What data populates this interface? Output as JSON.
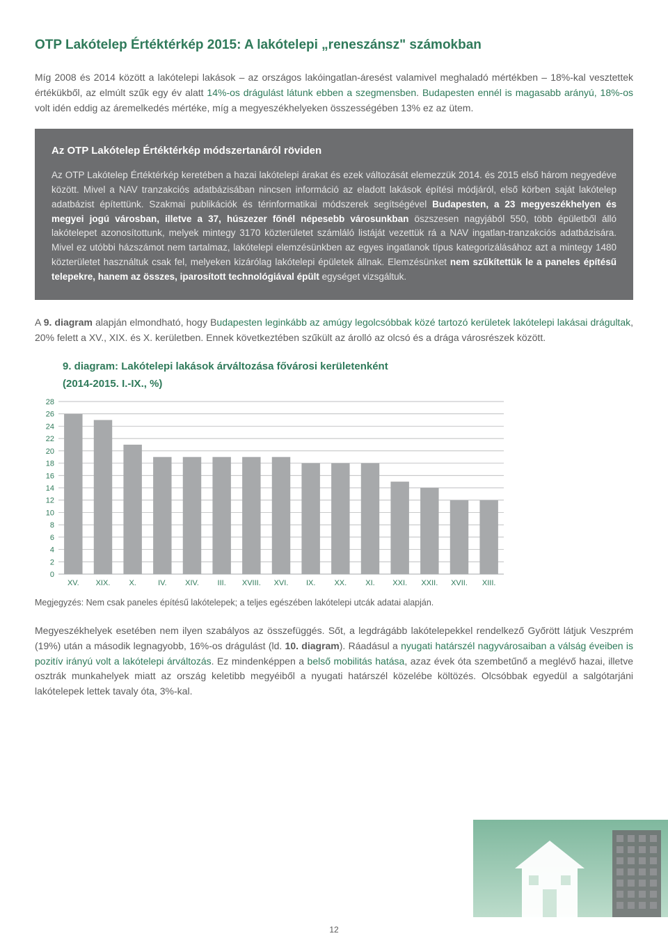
{
  "title": "OTP Lakótelep Értéktérkép 2015: A lakótelepi „reneszánsz\" számokban",
  "para1_pre": "Míg 2008 és 2014 között a lakótelepi lakások – az országos lakóingatlan-áresést valamivel meghaladó mértékben – 18%-kal vesztettek értékükből, az elmúlt szűk egy év alatt ",
  "para1_g1": "14%-os drágulást látunk ebben a szegmensben",
  "para1_mid": ". ",
  "para1_g2": "Budapesten ennél is magasabb arányú, 18%-os",
  "para1_post": " volt idén eddig az áremelkedés mértéke, míg a megyeszékhelyeken összességében 13% ez az ütem.",
  "info_title": "Az OTP Lakótelep Értéktérkép módszertanáról röviden",
  "info_body_a": "Az OTP Lakótelep Értéktérkép keretében a hazai lakótelepi árakat és ezek változását elemezzük 2014. és 2015 első három negyedéve között. Mivel a NAV tranzakciós adatbázisában nincsen információ az eladott lakások építési módjáról, első körben saját lakótelep adatbázist építettünk. Szakmai publikációk és térinformatikai módszerek segítségével ",
  "info_bold_1": "Budapesten, a 23 megyeszékhelyen és megyei jogú városban, illetve a 37, húszezer főnél népesebb városunkban",
  "info_body_b": " ösz­szesen nagyjából 550, több épületből álló lakótelepet azonosítottunk, melyek mintegy 3170 közterületet számláló listáját vezettük rá a NAV ingatlan-tranzakciós adatbázisára. Mivel ez utóbbi házszámot nem tartalmaz, lakótelepi elemzésünkben az egyes ingatlanok típus kategorizálásához azt a mintegy 1480 közterületet használtuk csak fel, melyeken kizárólag lakótelepi épületek állnak. Elemzésünket ",
  "info_bold_2": "nem szűkítettük le a paneles építésű telepekre, hanem az összes, iparosított technológiával épült",
  "info_body_c": " egységet vizsgáltuk.",
  "para2_a": "A ",
  "para2_bold": "9. diagram",
  "para2_b": " alapján elmondható, hogy B",
  "para2_g1": "udapesten leginkább az amúgy legolcsóbbak közé tartozó kerületek lakótelepi lakásai drágultak",
  "para2_c": ", 20% felett a XV., XIX. és X. kerületben. Ennek következtében szűkült az árolló az olcsó és a drága városrészek között.",
  "chart_title": "9. diagram: Lakótelepi lakások árváltozása fővárosi kerületenként",
  "chart_subtitle": "(2014-2015. I.-IX., %)",
  "chart_note": "Megjegyzés: Nem csak paneles építésű lakótelepek; a teljes egészében lakótelepi utcák adatai alapján.",
  "para3_a": "Megyeszékhelyek esetében nem ilyen szabályos az összefüggés. Sőt, a legdrágább lakótelepekkel rendelkező Győrött látjuk Veszprém (19%) után a második legnagyobb, 16%-os drágulást (ld. ",
  "para3_bold": "10. diagram",
  "para3_b": "). Ráadásul a ",
  "para3_g1": "nyugati határszél nagyvárosaiban a válság éveiben is pozitív irányú volt a lakótelepi árváltozás",
  "para3_c": ". Ez mindenképpen a ",
  "para3_g2": "belső mobilitás hatása",
  "para3_d": ", azaz évek óta szembetűnő a meglévő hazai, illetve osztrák munkahelyek miatt az ország keletibb megyéiből a nyugati határszél közelébe költözés. Olcsóbbak egyedül a salgótarjáni lakótelepek lettek tavaly óta, 3%-kal.",
  "page_num": "12",
  "chart": {
    "type": "bar",
    "categories": [
      "XV.",
      "XIX.",
      "X.",
      "IV.",
      "XIV.",
      "III.",
      "XVIII.",
      "XVI.",
      "IX.",
      "XX.",
      "XI.",
      "XXI.",
      "XXII.",
      "XVII.",
      "XIII."
    ],
    "values": [
      26,
      25,
      21,
      19,
      19,
      19,
      19,
      19,
      18,
      18,
      18,
      15,
      14,
      12,
      12
    ],
    "ylim": [
      0,
      28
    ],
    "ytick_step": 2,
    "bar_color": "#a7a9ab",
    "grid_color": "#a7a9ab",
    "axis_label_color": "#2f7a5a",
    "background": "#ffffff",
    "label_fontsize": 11,
    "bar_width_ratio": 0.62
  },
  "illustration": {
    "sky_top": "#7fb89e",
    "sky_bottom": "#bcdccb",
    "building_color": "#6d6e70",
    "house_color": "#ffffff",
    "roof_color": "#ffffff"
  }
}
